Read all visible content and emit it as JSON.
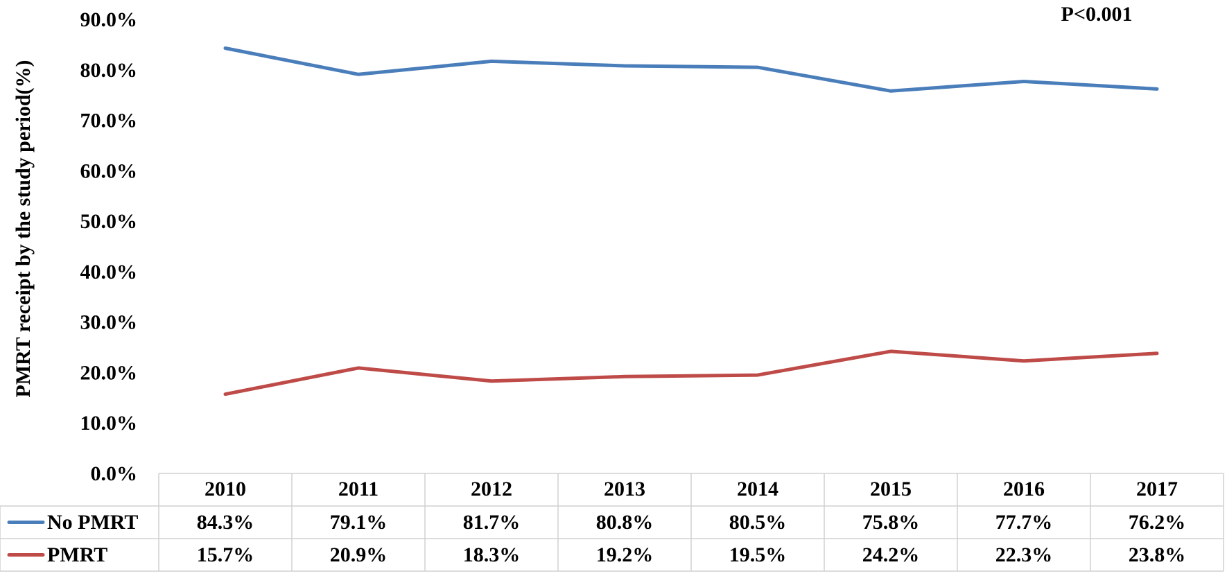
{
  "chart_data": {
    "type": "line",
    "title": "",
    "xlabel": "",
    "ylabel": "PMRT receipt by the study period(%)",
    "ylim": [
      0,
      90
    ],
    "yticks": [
      "0.0%",
      "10.0%",
      "20.0%",
      "30.0%",
      "40.0%",
      "50.0%",
      "60.0%",
      "70.0%",
      "80.0%",
      "90.0%"
    ],
    "categories": [
      "2010",
      "2011",
      "2012",
      "2013",
      "2014",
      "2015",
      "2016",
      "2017"
    ],
    "annotation": "P<0.001",
    "grid": false,
    "series": [
      {
        "name": "No PMRT",
        "color": "#4a7ebb",
        "values": [
          84.3,
          79.1,
          81.7,
          80.8,
          80.5,
          75.8,
          77.7,
          76.2
        ],
        "labels": [
          "84.3%",
          "79.1%",
          "81.7%",
          "80.8%",
          "80.5%",
          "75.8%",
          "77.7%",
          "76.2%"
        ]
      },
      {
        "name": "PMRT",
        "color": "#be4b48",
        "values": [
          15.7,
          20.9,
          18.3,
          19.2,
          19.5,
          24.2,
          22.3,
          23.8
        ],
        "labels": [
          "15.7%",
          "20.9%",
          "18.3%",
          "19.2%",
          "19.5%",
          "24.2%",
          "22.3%",
          "23.8%"
        ]
      }
    ]
  }
}
